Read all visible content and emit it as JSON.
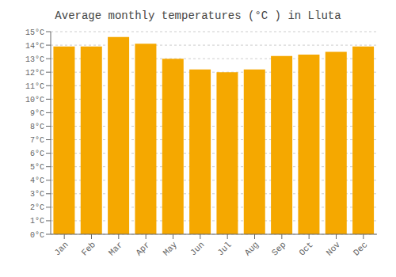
{
  "chart_data": {
    "type": "bar",
    "title": "Average monthly temperatures (°C ) in Lluta",
    "categories": [
      "Jan",
      "Feb",
      "Mar",
      "Apr",
      "May",
      "Jun",
      "Jul",
      "Aug",
      "Sep",
      "Oct",
      "Nov",
      "Dec"
    ],
    "values": [
      13.9,
      13.9,
      14.6,
      14.1,
      13.0,
      12.2,
      12.0,
      12.2,
      13.2,
      13.3,
      13.5,
      13.9
    ],
    "color": "#F5A800",
    "ylim": [
      0,
      15
    ],
    "yticks": [
      {
        "value": 0,
        "label": "0°C"
      },
      {
        "value": 1,
        "label": "1°C"
      },
      {
        "value": 2,
        "label": "2°C"
      },
      {
        "value": 3,
        "label": "3°C"
      },
      {
        "value": 4,
        "label": "4°C"
      },
      {
        "value": 5,
        "label": "5°C"
      },
      {
        "value": 6,
        "label": "6°C"
      },
      {
        "value": 7,
        "label": "7°C"
      },
      {
        "value": 8,
        "label": "8°C"
      },
      {
        "value": 9,
        "label": "9°C"
      },
      {
        "value": 10,
        "label": "10°C"
      },
      {
        "value": 11,
        "label": "11°C"
      },
      {
        "value": 12,
        "label": "12°C"
      },
      {
        "value": 13,
        "label": "13°C"
      },
      {
        "value": 14,
        "label": "14°C"
      },
      {
        "value": 15,
        "label": "15°C"
      }
    ],
    "grid": true
  }
}
